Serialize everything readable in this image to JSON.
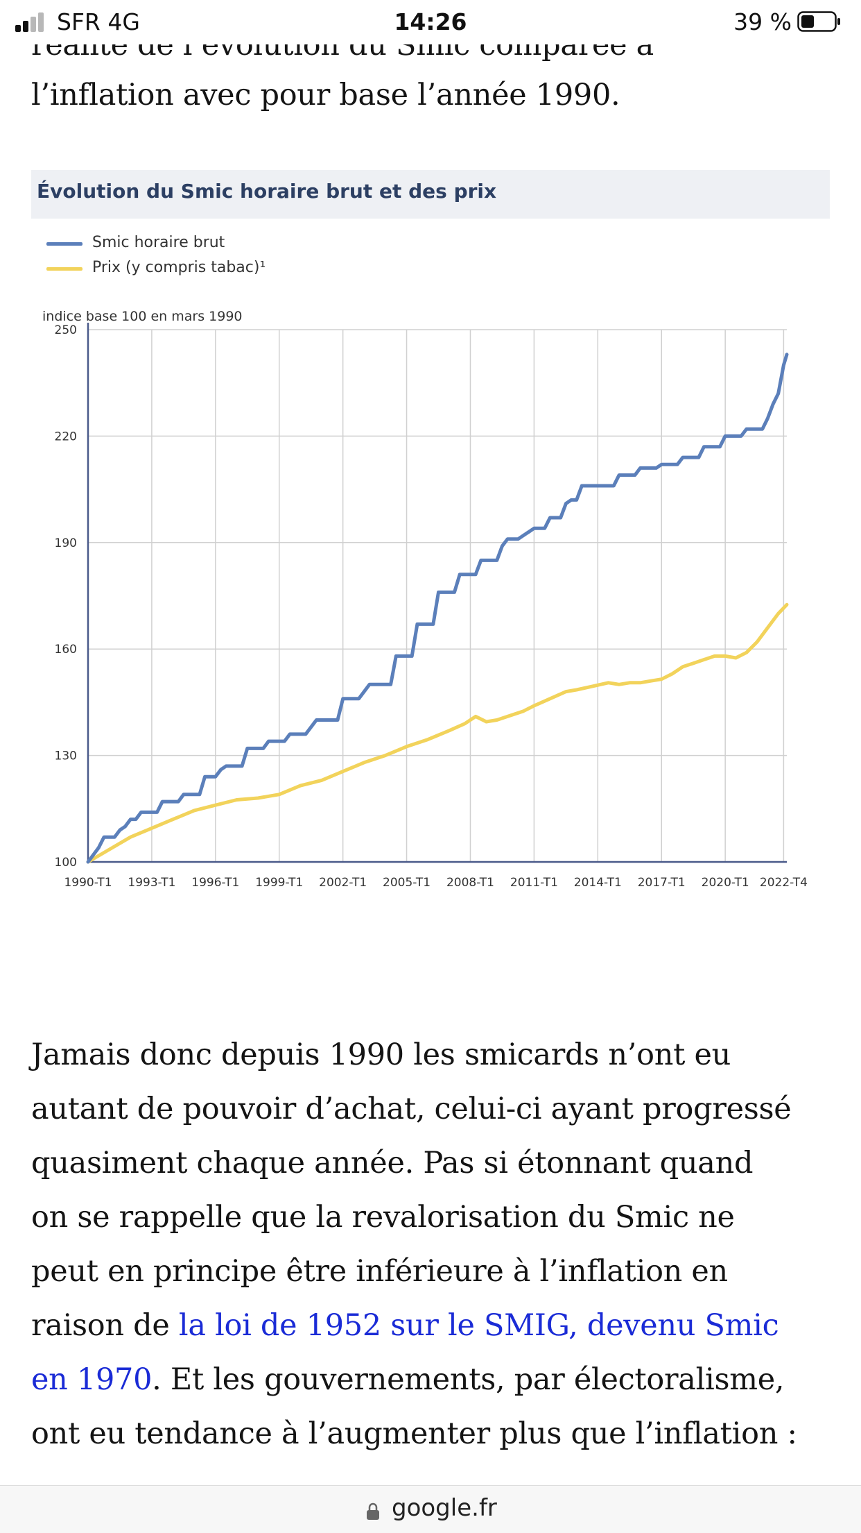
{
  "status_bar": {
    "carrier": "SFR  4G",
    "time": "14:26",
    "battery": "39 %"
  },
  "article": {
    "intro_lines": [
      "réalité de l’évolution du Smic comparée à",
      "l’inflation avec pour base l’année 1990."
    ],
    "para2": {
      "lines": [
        "Jamais donc depuis 1990 les smicards n’ont eu",
        "autant de pouvoir d’achat, celui-ci ayant progressé",
        "quasiment chaque année. Pas si étonnant quand",
        "on se rappelle que la revalorisation du Smic ne",
        "peut en principe être inférieure à l’inflation en"
      ],
      "line6_prefix": "raison de ",
      "line6_link": "la loi de 1952 sur le SMIG, devenu Smic",
      "line7_link": "en 1970",
      "line7_suffix": ". Et les gouvernements, par électoralisme,",
      "line8": "ont eu tendance à l’augmenter plus que l’inflation :"
    }
  },
  "chart_data": {
    "type": "line",
    "title": "Évolution du Smic horaire brut et des prix",
    "unit_label": "indice base 100 en mars 1990",
    "ylim": [
      100,
      250
    ],
    "y_ticks": [
      100,
      130,
      160,
      190,
      220,
      250
    ],
    "x_ticks": [
      "1990-T1",
      "1993-T1",
      "1996-T1",
      "1999-T1",
      "2002-T1",
      "2005-T1",
      "2008-T1",
      "2011-T1",
      "2014-T1",
      "2017-T1",
      "2020-T1",
      "2022-T4"
    ],
    "grid": true,
    "legend_position": "top-left",
    "series": [
      {
        "name": "Smic horaire brut",
        "color": "#5b7fba",
        "x": [
          1990.0,
          1990.5,
          1990.75,
          1991.25,
          1991.5,
          1991.75,
          1992.0,
          1992.25,
          1992.5,
          1993.25,
          1993.5,
          1994.25,
          1994.5,
          1995.25,
          1995.5,
          1996.0,
          1996.25,
          1996.5,
          1996.75,
          1997.25,
          1997.5,
          1998.25,
          1998.5,
          1999.25,
          1999.5,
          2000.0,
          2000.25,
          2000.75,
          2001.0,
          2001.75,
          2002.0,
          2002.5,
          2002.75,
          2003.25,
          2003.5,
          2004.25,
          2004.5,
          2005.25,
          2005.5,
          2006.25,
          2006.5,
          2007.25,
          2007.5,
          2008.0,
          2008.25,
          2008.5,
          2009.25,
          2009.5,
          2009.75,
          2010.25,
          2010.75,
          2011.0,
          2011.5,
          2011.75,
          2012.25,
          2012.5,
          2012.75,
          2013.0,
          2013.25,
          2013.75,
          2014.0,
          2014.75,
          2015.0,
          2015.75,
          2016.0,
          2016.75,
          2017.0,
          2017.75,
          2018.0,
          2018.75,
          2019.0,
          2019.75,
          2020.0,
          2020.75,
          2021.0,
          2021.5,
          2021.75,
          2022.0,
          2022.25,
          2022.5,
          2022.75,
          2022.9
        ],
        "values": [
          100,
          104,
          107,
          107,
          109,
          110,
          112,
          112,
          114,
          114,
          117,
          117,
          119,
          119,
          124,
          124,
          126,
          127,
          127,
          127,
          132,
          132,
          134,
          134,
          136,
          136,
          136,
          140,
          140,
          140,
          146,
          146,
          146,
          150,
          150,
          150,
          158,
          158,
          167,
          167,
          176,
          176,
          181,
          181,
          181,
          185,
          185,
          189,
          191,
          191,
          193,
          194,
          194,
          197,
          197,
          201,
          202,
          202,
          206,
          206,
          206,
          206,
          209,
          209,
          211,
          211,
          212,
          212,
          214,
          214,
          217,
          217,
          220,
          220,
          222,
          222,
          222,
          225,
          229,
          232,
          240,
          243
        ]
      },
      {
        "name": "Prix (y compris tabac)¹",
        "color": "#f2d35b",
        "x": [
          1990.0,
          1991.0,
          1992.0,
          1993.0,
          1994.0,
          1995.0,
          1996.0,
          1997.0,
          1998.0,
          1999.0,
          2000.0,
          2001.0,
          2002.0,
          2003.0,
          2004.0,
          2005.0,
          2006.0,
          2007.0,
          2007.75,
          2008.25,
          2008.75,
          2009.25,
          2009.75,
          2010.5,
          2011.0,
          2011.75,
          2012.5,
          2013.0,
          2013.75,
          2014.5,
          2015.0,
          2015.5,
          2016.0,
          2016.5,
          2017.0,
          2017.5,
          2018.0,
          2018.5,
          2019.0,
          2019.5,
          2020.0,
          2020.5,
          2021.0,
          2021.5,
          2022.0,
          2022.5,
          2022.9
        ],
        "values": [
          100,
          103.5,
          107,
          109.5,
          112,
          114.5,
          116,
          117.5,
          118,
          119,
          121.5,
          123,
          125.5,
          128,
          130,
          132.5,
          134.5,
          137,
          139,
          141,
          139.5,
          140,
          141,
          142.5,
          144,
          146,
          148,
          148.5,
          149.5,
          150.5,
          150,
          150.5,
          150.5,
          151,
          151.5,
          153,
          155,
          156,
          157,
          158,
          158,
          157.5,
          159,
          162,
          166,
          170,
          172.5
        ]
      }
    ]
  },
  "url_bar": {
    "domain": "google.fr"
  }
}
